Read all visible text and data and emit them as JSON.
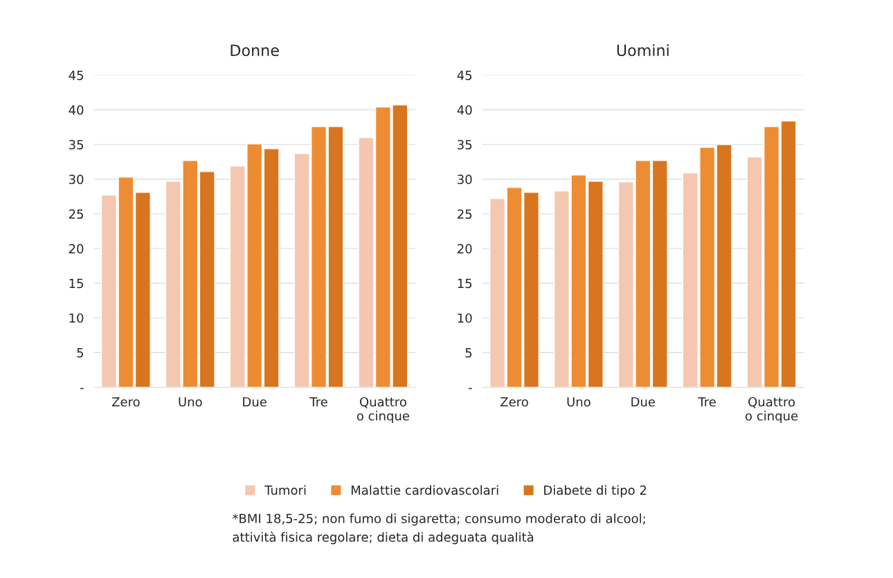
{
  "chart_data": [
    {
      "type": "bar",
      "title": "Donne",
      "categories": [
        "Zero",
        "Uno",
        "Due",
        "Tre",
        "Quattro\no cinque"
      ],
      "series": [
        {
          "color": "#f4c7b0",
          "values": [
            27.7,
            29.7,
            31.9,
            33.7,
            36.0
          ]
        },
        {
          "color": "#ee8c33",
          "values": [
            30.3,
            32.7,
            35.1,
            37.6,
            40.4
          ]
        },
        {
          "color": "#d9751f",
          "values": [
            28.1,
            31.1,
            34.4,
            37.6,
            40.7
          ]
        }
      ],
      "ylim": [
        0,
        45
      ],
      "yticks": [
        {
          "value": 0,
          "label": "-"
        },
        5,
        10,
        15,
        20,
        25,
        30,
        35,
        40,
        45
      ],
      "grid": "y",
      "annotations": [
        "*BMI 18,5-25; non fumo di sigaretta; consumo moderato di alcool;\nattività fisica regolare; dieta di adeguata qualità"
      ]
    },
    {
      "type": "bar",
      "title": "Uomini",
      "categories": [
        "Zero",
        "Uno",
        "Due",
        "Tre",
        "Quattro\no cinque"
      ],
      "series": [
        {
          "name": "Tumori",
          "color": "#f4c7b0",
          "values": [
            27.2,
            28.3,
            29.6,
            30.9,
            33.2
          ]
        },
        {
          "name": "Malattie cardiovascolari",
          "color": "#ee8c33",
          "values": [
            28.8,
            30.6,
            32.7,
            34.6,
            37.6
          ]
        },
        {
          "name": "Diabete di tipo 2",
          "color": "#d9751f",
          "values": [
            28.1,
            29.7,
            32.7,
            35.0,
            38.4
          ]
        }
      ],
      "ylim": [
        0,
        45
      ],
      "yticks": [
        {
          "value": 0,
          "label": "-"
        },
        5,
        10,
        15,
        20,
        25,
        30,
        35,
        40,
        45
      ],
      "grid": "y",
      "legend": "bottom"
    }
  ]
}
